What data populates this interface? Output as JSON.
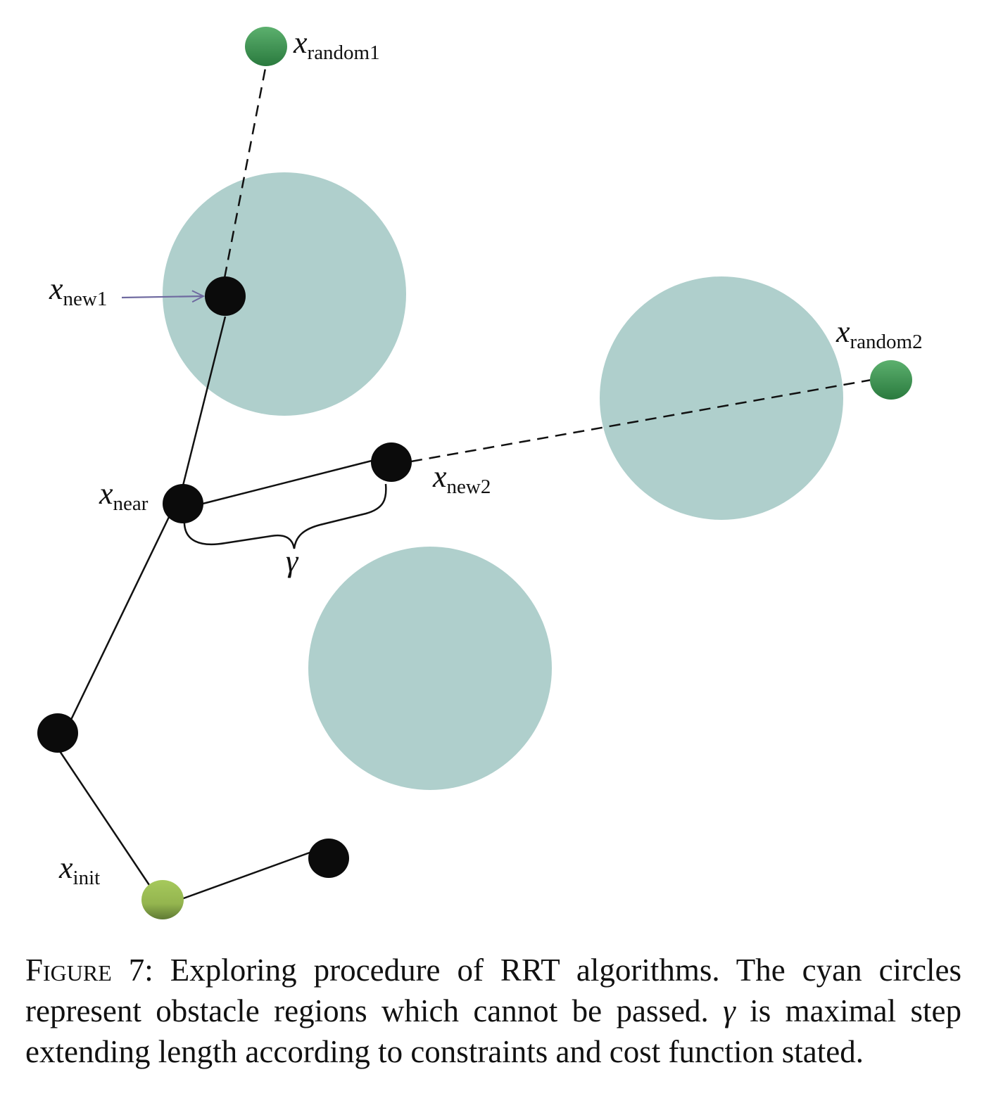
{
  "colors": {
    "obstacle": "#afcfcc",
    "node": "#0b0b0b",
    "random_node": "#3e9a55",
    "init_node": "#9cbf55",
    "arrow": "#6f6aa0"
  },
  "labels": {
    "random1": {
      "var": "x",
      "sub": "random1"
    },
    "random2": {
      "var": "x",
      "sub": "random2"
    },
    "new1": {
      "var": "x",
      "sub": "new1"
    },
    "new2": {
      "var": "x",
      "sub": "new2"
    },
    "near": {
      "var": "x",
      "sub": "near"
    },
    "init": {
      "var": "x",
      "sub": "init"
    },
    "gamma": "γ"
  },
  "caption": {
    "figure_label": "Figure 7:",
    "text_part1": " Exploring procedure of RRT algorithms. The cyan circles represent obstacle regions which cannot be passed. ",
    "gamma": "γ",
    "text_part2": " is maximal step extending length according to constraints and cost function stated."
  }
}
